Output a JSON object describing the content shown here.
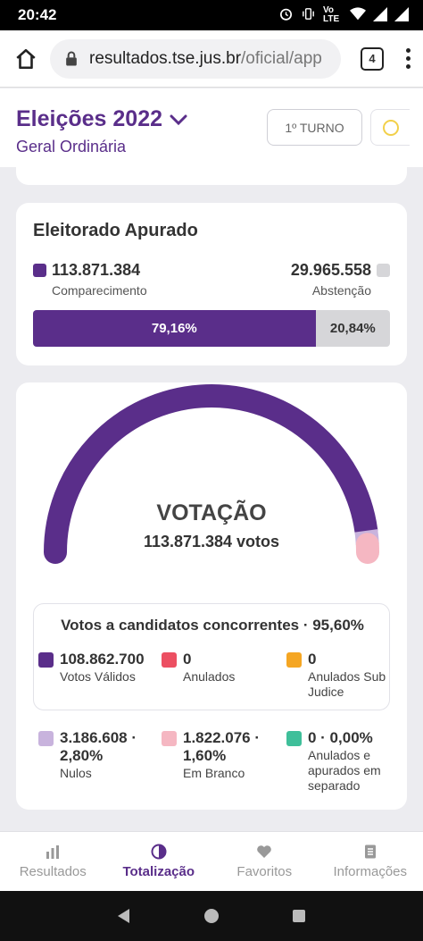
{
  "status_bar": {
    "time": "20:42",
    "network": "Vo LTE"
  },
  "browser": {
    "url_host": "resultados.tse.jus.br",
    "url_path": "/oficial/app",
    "tab_count": "4"
  },
  "header": {
    "title": "Eleições 2022",
    "subtitle": "Geral Ordinária",
    "turno_label": "1º TURNO"
  },
  "eleitorado": {
    "title": "Eleitorado Apurado",
    "comparecimento_value": "113.871.384",
    "comparecimento_label": "Comparecimento",
    "abstencao_value": "29.965.558",
    "abstencao_label": "Abstenção",
    "comparecimento_pct_label": "79,16%",
    "abstencao_pct_label": "20,84%",
    "comparecimento_fraction": 0.7916,
    "colors": {
      "comparecimento": "#5a2e8a",
      "abstencao": "#d6d6d9"
    }
  },
  "votacao": {
    "title": "VOTAÇÃO",
    "votes_label": "113.871.384 votos",
    "gauge_segments": [
      {
        "name": "Votos Válidos",
        "fraction": 0.956,
        "color": "#5a2e8a"
      },
      {
        "name": "Nulos",
        "fraction": 0.028,
        "color": "#c8b3dd"
      },
      {
        "name": "Em Branco",
        "fraction": 0.016,
        "color": "#f5b7c2"
      }
    ],
    "concorrentes_title": "Votos a candidatos concorrentes · 95,60%",
    "stats": [
      {
        "value": "108.862.700",
        "label": "Votos Válidos",
        "color": "#5a2e8a"
      },
      {
        "value": "0",
        "label": "Anulados",
        "color": "#ec4f62"
      },
      {
        "value": "0",
        "label": "Anulados Sub Judice",
        "color": "#f5a623"
      },
      {
        "value": "3.186.608 · 2,80%",
        "label": "Nulos",
        "color": "#c8b3dd"
      },
      {
        "value": "1.822.076 · 1,60%",
        "label": "Em Branco",
        "color": "#f5b7c2"
      },
      {
        "value": "0 · 0,00%",
        "label": "Anulados e apurados em separado",
        "color": "#3fbf9a"
      }
    ]
  },
  "bottom_nav": {
    "items": [
      {
        "label": "Resultados",
        "icon": "bar-chart-icon"
      },
      {
        "label": "Totalização",
        "icon": "pie-chart-icon"
      },
      {
        "label": "Favoritos",
        "icon": "heart-icon"
      },
      {
        "label": "Informações",
        "icon": "document-icon"
      }
    ],
    "active_index": 1
  }
}
